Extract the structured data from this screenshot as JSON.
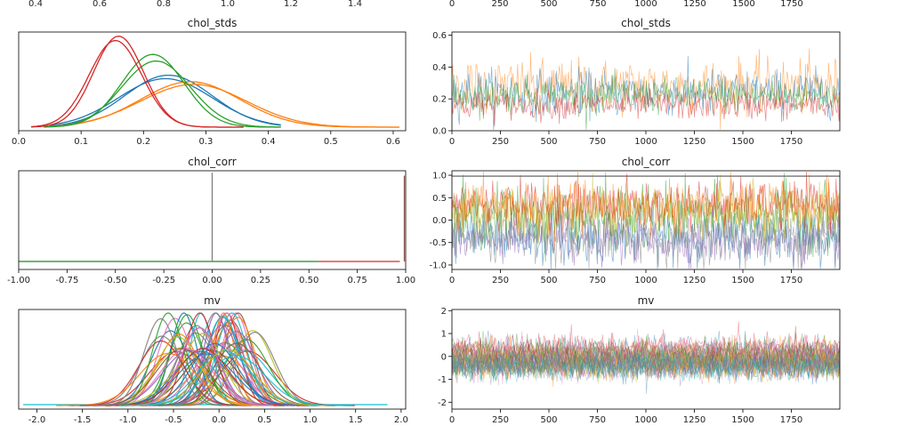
{
  "colors": {
    "palette": [
      "#1f77b4",
      "#ff7f0e",
      "#2ca02c",
      "#d62728",
      "#9467bd",
      "#8c564b",
      "#e377c2",
      "#7f7f7f",
      "#bcbd22",
      "#17becf"
    ],
    "axis": "#000000"
  },
  "top_cut_off": {
    "left_tick_labels": [
      "0.4",
      "0.6",
      "0.8",
      "1.0",
      "1.2",
      "1.4"
    ],
    "right_tick_labels": [
      "0",
      "250",
      "500",
      "750",
      "1000",
      "1250",
      "1500",
      "1750"
    ]
  },
  "chart_data": [
    {
      "type": "line",
      "title": "chol_stds",
      "panel": "density",
      "xlim": [
        0.0,
        0.62
      ],
      "x_ticks": [
        "0.0",
        "0.1",
        "0.2",
        "0.3",
        "0.4",
        "0.5",
        "0.6"
      ],
      "series": [
        {
          "color": "#1f77b4",
          "curves": [
            {
              "mode": 0.235,
              "sd": 0.075,
              "range": [
                0.05,
                0.42
              ]
            },
            {
              "mode": 0.24,
              "sd": 0.07,
              "range": [
                0.05,
                0.42
              ]
            }
          ]
        },
        {
          "color": "#ff7f0e",
          "curves": [
            {
              "mode": 0.28,
              "sd": 0.085,
              "range": [
                0.06,
                0.61
              ]
            },
            {
              "mode": 0.275,
              "sd": 0.08,
              "range": [
                0.06,
                0.61
              ]
            }
          ]
        },
        {
          "color": "#2ca02c",
          "curves": [
            {
              "mode": 0.22,
              "sd": 0.055,
              "range": [
                0.04,
                0.42
              ]
            },
            {
              "mode": 0.215,
              "sd": 0.05,
              "range": [
                0.04,
                0.42
              ]
            }
          ]
        },
        {
          "color": "#d62728",
          "curves": [
            {
              "mode": 0.16,
              "sd": 0.04,
              "range": [
                0.02,
                0.36
              ]
            },
            {
              "mode": 0.155,
              "sd": 0.042,
              "range": [
                0.02,
                0.36
              ]
            }
          ]
        }
      ]
    },
    {
      "type": "line",
      "title": "chol_stds",
      "panel": "trace",
      "xlim": [
        0,
        2000
      ],
      "ylim": [
        0.0,
        0.62
      ],
      "x_ticks": [
        "0",
        "250",
        "500",
        "750",
        "1000",
        "1250",
        "1500",
        "1750"
      ],
      "y_ticks": [
        "0.0",
        "0.2",
        "0.4",
        "0.6"
      ],
      "series": [
        {
          "color": "#ff7f0e",
          "center": 0.28,
          "spread": 0.085
        },
        {
          "color": "#1f77b4",
          "center": 0.24,
          "spread": 0.07
        },
        {
          "color": "#2ca02c",
          "center": 0.22,
          "spread": 0.055
        },
        {
          "color": "#d62728",
          "center": 0.16,
          "spread": 0.045
        }
      ]
    },
    {
      "type": "line",
      "title": "chol_corr",
      "panel": "density",
      "xlim": [
        -1.0,
        1.0
      ],
      "x_ticks": [
        "-1.00",
        "-0.75",
        "-0.50",
        "-0.25",
        "0.00",
        "0.25",
        "0.50",
        "0.75",
        "1.00"
      ],
      "spikes": [
        {
          "x": 0.0,
          "height": 0.98
        },
        {
          "x": 1.0,
          "height": 0.95
        }
      ]
    },
    {
      "type": "line",
      "title": "chol_corr",
      "panel": "trace",
      "xlim": [
        0,
        2000
      ],
      "ylim": [
        -1.1,
        1.1
      ],
      "x_ticks": [
        "0",
        "250",
        "500",
        "750",
        "1000",
        "1250",
        "1500",
        "1750"
      ],
      "y_ticks": [
        "-1.0",
        "-0.5",
        "0.0",
        "0.5",
        "1.0"
      ],
      "constant_lines": [
        1.0
      ],
      "series": [
        {
          "color": "#1f77b4",
          "center": -0.35,
          "spread": 0.3
        },
        {
          "color": "#2ca02c",
          "center": 0.1,
          "spread": 0.35
        },
        {
          "color": "#9467bd",
          "center": -0.45,
          "spread": 0.25
        },
        {
          "color": "#7f7f7f",
          "center": -0.4,
          "spread": 0.3
        },
        {
          "color": "#bcbd22",
          "center": 0.2,
          "spread": 0.3
        },
        {
          "color": "#d62728",
          "center": 0.35,
          "spread": 0.25
        },
        {
          "color": "#ff7f0e",
          "center": 0.3,
          "spread": 0.3
        }
      ]
    },
    {
      "type": "line",
      "title": "mv",
      "panel": "density",
      "xlim": [
        -2.2,
        2.05
      ],
      "x_ticks": [
        "-2.0",
        "-1.5",
        "-1.0",
        "-0.5",
        "0.0",
        "0.5",
        "1.0",
        "1.5",
        "2.0"
      ],
      "curve_count": 60,
      "mode_range": [
        -0.65,
        0.4
      ],
      "sd_range": [
        0.12,
        0.32
      ],
      "support": [
        -2.15,
        1.85
      ]
    },
    {
      "type": "line",
      "title": "mv",
      "panel": "trace",
      "xlim": [
        0,
        2000
      ],
      "ylim": [
        -2.3,
        2.05
      ],
      "x_ticks": [
        "0",
        "250",
        "500",
        "750",
        "1000",
        "1250",
        "1500",
        "1750"
      ],
      "y_ticks": [
        "-2",
        "-1",
        "0",
        "1",
        "2"
      ],
      "series_count": 40,
      "center_range": [
        -0.5,
        0.4
      ],
      "spread": 0.28
    }
  ]
}
